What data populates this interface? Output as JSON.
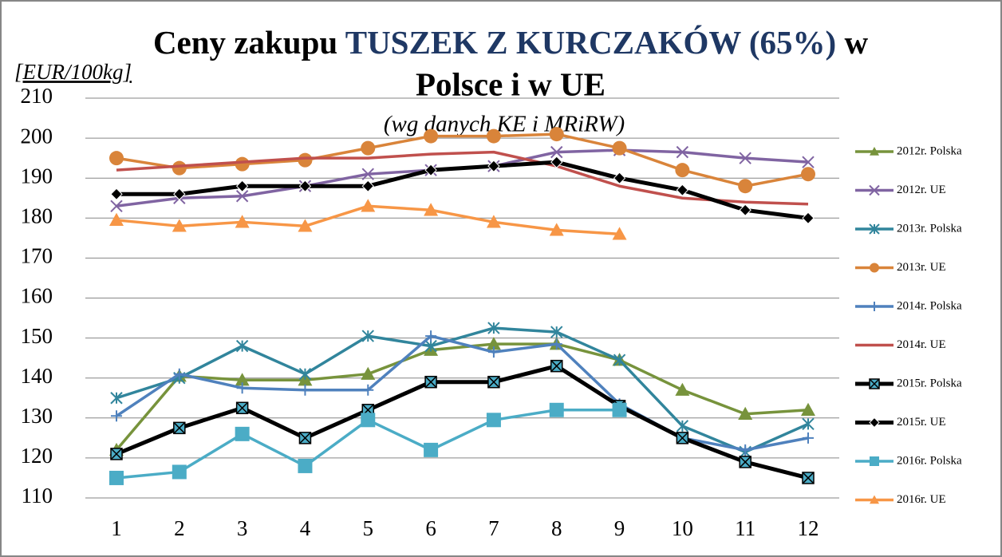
{
  "chart_data": {
    "type": "line",
    "title": [
      "Ceny zakupu",
      "TUSZEK Z KURCZAKÓW (65%)",
      "w",
      "Polsce i w UE"
    ],
    "subtitle": "(wg  danych  KE i MRiRW)",
    "y_label": "[EUR/100kg]",
    "categories": [
      1,
      2,
      3,
      4,
      5,
      6,
      7,
      8,
      9,
      10,
      11,
      12
    ],
    "ylim": [
      110,
      210
    ],
    "yticks": [
      110,
      120,
      130,
      140,
      150,
      160,
      170,
      180,
      190,
      200,
      210
    ],
    "grid": true,
    "legend": "right",
    "series": [
      {
        "name": "2012r. Polska",
        "color": "#77933c",
        "marker": "triangle",
        "values": [
          122,
          140.5,
          139.5,
          139.5,
          141,
          147,
          148.5,
          148.5,
          144.5,
          137,
          131,
          132
        ]
      },
      {
        "name": "2012r. UE",
        "color": "#8064a2",
        "marker": "x",
        "values": [
          183,
          185,
          185.5,
          188,
          191,
          192,
          193,
          196.5,
          197,
          196.5,
          195,
          194
        ]
      },
      {
        "name": "2013r. Polska",
        "color": "#31859c",
        "marker": "star",
        "values": [
          135,
          140,
          148,
          141,
          150.5,
          148,
          152.5,
          151.5,
          144.5,
          128,
          121.5,
          128.5
        ]
      },
      {
        "name": "2013r. UE",
        "color": "#d9843a",
        "marker": "circle",
        "values": [
          195,
          192.5,
          193.5,
          194.5,
          197.5,
          200.5,
          200.5,
          201,
          197.5,
          192,
          188,
          191
        ]
      },
      {
        "name": "2014r. Polska",
        "color": "#4f81bd",
        "marker": "plus",
        "values": [
          130.5,
          141,
          137.5,
          137,
          137,
          150.5,
          146.5,
          148.5,
          133.5,
          125,
          122,
          125
        ]
      },
      {
        "name": "2014r. UE",
        "color": "#c0504d",
        "marker": "none",
        "values": [
          192,
          193,
          194,
          195,
          195,
          196,
          196.5,
          193,
          188,
          185,
          184,
          183.5
        ]
      },
      {
        "name": "2015r. Polska",
        "color": "#000000",
        "marker": "square-x",
        "values": [
          121,
          127.5,
          132.5,
          125,
          132,
          139,
          139,
          143,
          133,
          125,
          119,
          115
        ]
      },
      {
        "name": "2015r. UE",
        "color": "#000000",
        "marker": "diamond",
        "values": [
          186,
          186,
          188,
          188,
          188,
          192,
          193,
          194,
          190,
          187,
          182,
          180
        ]
      },
      {
        "name": "2016r. Polska",
        "color": "#4bacc6",
        "marker": "square",
        "values": [
          115,
          116.5,
          126,
          118,
          129.5,
          122,
          129.5,
          132,
          132,
          null,
          null,
          null
        ]
      },
      {
        "name": "2016r. UE",
        "color": "#f79646",
        "marker": "triangle",
        "values": [
          179.5,
          178,
          179,
          178,
          183,
          182,
          179,
          177,
          176,
          null,
          null,
          null
        ]
      }
    ]
  }
}
